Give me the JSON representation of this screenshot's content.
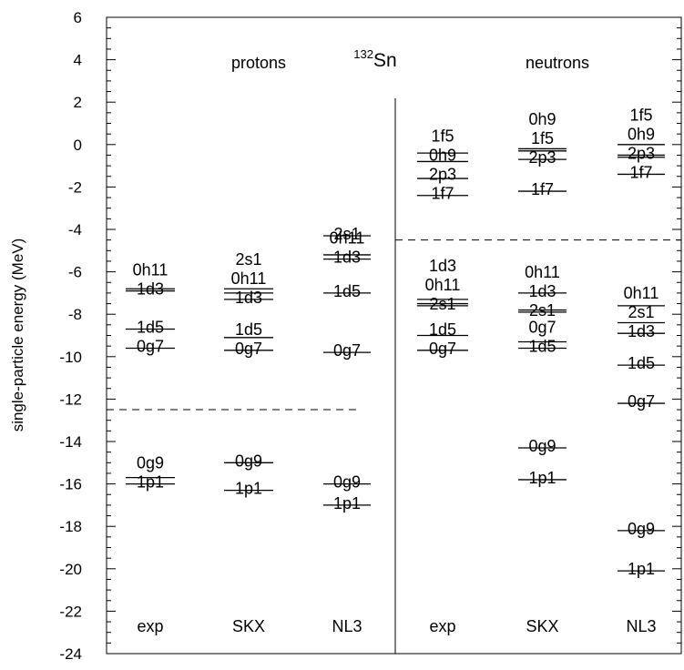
{
  "chart_data": {
    "type": "level-scheme",
    "title_pre": "132",
    "title_post": "Sn",
    "group_labels": {
      "protons": "protons",
      "neutrons": "neutrons"
    },
    "ylabel": "single-particle energy (MeV)",
    "ylim": [
      -24,
      6
    ],
    "y_major_ticks": [
      "6",
      "4",
      "2",
      "0",
      "-2",
      "-4",
      "-6",
      "-8",
      "-10",
      "-12",
      "-14",
      "-16",
      "-18",
      "-20",
      "-22",
      "-24"
    ],
    "y_minor_step": 0.5,
    "grid": false,
    "fermi_lines": {
      "protons": -12.5,
      "neutrons": -4.5
    },
    "columns": [
      {
        "group": "protons",
        "label": "exp",
        "levels": [
          {
            "state": "0h11",
            "energy": -6.8
          },
          {
            "state": "1d3",
            "energy": -6.9
          },
          {
            "state": "1d5",
            "energy": -8.7
          },
          {
            "state": "0g7",
            "energy": -9.6
          },
          {
            "state": "0g9",
            "energy": -15.7
          },
          {
            "state": "1p1",
            "energy": -16.0
          }
        ]
      },
      {
        "group": "protons",
        "label": "SKX",
        "levels": [
          {
            "state": "2s1",
            "energy": -6.8
          },
          {
            "state": "0h11",
            "energy": -7.0
          },
          {
            "state": "1d3",
            "energy": -7.3
          },
          {
            "state": "1d5",
            "energy": -9.1
          },
          {
            "state": "0g7",
            "energy": -9.7
          },
          {
            "state": "0g9",
            "energy": -15.0
          },
          {
            "state": "1p1",
            "energy": -16.3
          }
        ]
      },
      {
        "group": "protons",
        "label": "NL3",
        "levels": [
          {
            "state": "2s1",
            "energy": -4.3
          },
          {
            "state": "0h11",
            "energy": -5.2
          },
          {
            "state": "1d3",
            "energy": -5.4
          },
          {
            "state": "1d5",
            "energy": -7.0
          },
          {
            "state": "0g7",
            "energy": -9.8
          },
          {
            "state": "0g9",
            "energy": -16.0
          },
          {
            "state": "1p1",
            "energy": -17.0
          }
        ]
      },
      {
        "group": "neutrons",
        "label": "exp",
        "levels": [
          {
            "state": "1f5",
            "energy": -0.4
          },
          {
            "state": "0h9",
            "energy": -0.8
          },
          {
            "state": "2p3",
            "energy": -1.6
          },
          {
            "state": "1f7",
            "energy": -2.4
          },
          {
            "state": "1d3",
            "energy": -7.3
          },
          {
            "state": "0h11",
            "energy": -7.5
          },
          {
            "state": "2s1",
            "energy": -7.6
          },
          {
            "state": "1d5",
            "energy": -9.0
          },
          {
            "state": "0g7",
            "energy": -9.7
          }
        ]
      },
      {
        "group": "neutrons",
        "label": "SKX",
        "levels": [
          {
            "state": "0h9",
            "energy": -0.2
          },
          {
            "state": "1f5",
            "energy": -0.3
          },
          {
            "state": "2p3",
            "energy": -0.7
          },
          {
            "state": "1f7",
            "energy": -2.2
          },
          {
            "state": "0h11",
            "energy": -7.0
          },
          {
            "state": "1d3",
            "energy": -7.8
          },
          {
            "state": "2s1",
            "energy": -7.9
          },
          {
            "state": "0g7",
            "energy": -9.3
          },
          {
            "state": "1d5",
            "energy": -9.6
          },
          {
            "state": "0g9",
            "energy": -14.3
          },
          {
            "state": "1p1",
            "energy": -15.8
          }
        ]
      },
      {
        "group": "neutrons",
        "label": "NL3",
        "levels": [
          {
            "state": "1f5",
            "energy": 0.0
          },
          {
            "state": "0h9",
            "energy": -0.5
          },
          {
            "state": "2p3",
            "energy": -0.6
          },
          {
            "state": "1f7",
            "energy": -1.4
          },
          {
            "state": "0h11",
            "energy": -7.6
          },
          {
            "state": "2s1",
            "energy": -8.4
          },
          {
            "state": "1d3",
            "energy": -8.9
          },
          {
            "state": "1d5",
            "energy": -10.4
          },
          {
            "state": "0g7",
            "energy": -12.2
          },
          {
            "state": "0g9",
            "energy": -18.2
          },
          {
            "state": "1p1",
            "energy": -20.1
          }
        ]
      }
    ]
  }
}
